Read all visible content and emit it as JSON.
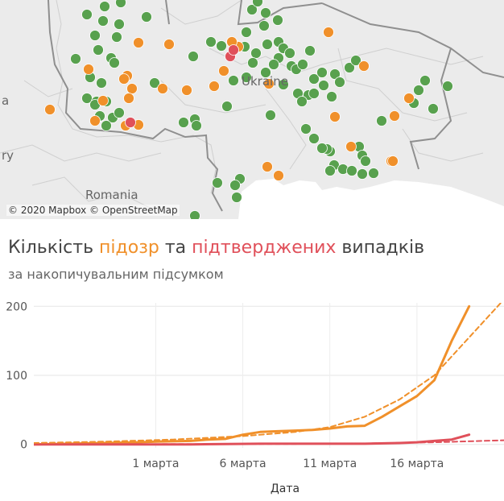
{
  "map": {
    "attribution": "© 2020 Mapbox © OpenStreetMap",
    "labels": {
      "ukraine": "Ukraine",
      "romania": "Romania",
      "left_a": "a",
      "left_y": "ry"
    },
    "colors": {
      "suspected": "#f0902a",
      "confirmed": "#e0505a",
      "other": "#58a14e"
    },
    "markers_green": [
      [
        108,
        18
      ],
      [
        128,
        26
      ],
      [
        150,
        3
      ],
      [
        182,
        21
      ],
      [
        118,
        44
      ],
      [
        145,
        46
      ],
      [
        130,
        8
      ],
      [
        148,
        30
      ],
      [
        94,
        73
      ],
      [
        122,
        62
      ],
      [
        138,
        72
      ],
      [
        142,
        78
      ],
      [
        112,
        96
      ],
      [
        126,
        103
      ],
      [
        108,
        122
      ],
      [
        120,
        126
      ],
      [
        132,
        126
      ],
      [
        118,
        130
      ],
      [
        124,
        144
      ],
      [
        140,
        146
      ],
      [
        148,
        140
      ],
      [
        132,
        156
      ],
      [
        192,
        103
      ],
      [
        228,
        152
      ],
      [
        242,
        148
      ],
      [
        244,
        156
      ],
      [
        240,
        70
      ],
      [
        262,
        52
      ],
      [
        275,
        57
      ],
      [
        304,
        58
      ],
      [
        306,
        40
      ],
      [
        313,
        12
      ],
      [
        320,
        2
      ],
      [
        330,
        16
      ],
      [
        345,
        25
      ],
      [
        318,
        66
      ],
      [
        314,
        78
      ],
      [
        306,
        96
      ],
      [
        290,
        100
      ],
      [
        328,
        32
      ],
      [
        332,
        55
      ],
      [
        346,
        52
      ],
      [
        352,
        60
      ],
      [
        360,
        66
      ],
      [
        362,
        82
      ],
      [
        368,
        86
      ],
      [
        376,
        80
      ],
      [
        385,
        63
      ],
      [
        346,
        72
      ],
      [
        340,
        80
      ],
      [
        330,
        90
      ],
      [
        352,
        105
      ],
      [
        383,
        118
      ],
      [
        370,
        116
      ],
      [
        375,
        126
      ],
      [
        390,
        98
      ],
      [
        400,
        90
      ],
      [
        402,
        106
      ],
      [
        416,
        92
      ],
      [
        422,
        102
      ],
      [
        434,
        84
      ],
      [
        412,
        120
      ],
      [
        336,
        143
      ],
      [
        390,
        116
      ],
      [
        474,
        150
      ],
      [
        520,
        112
      ],
      [
        528,
        100
      ],
      [
        514,
        128
      ],
      [
        538,
        135
      ],
      [
        556,
        107
      ],
      [
        410,
        188
      ],
      [
        406,
        185
      ],
      [
        415,
        205
      ],
      [
        426,
        210
      ],
      [
        437,
        212
      ],
      [
        446,
        182
      ],
      [
        450,
        193
      ],
      [
        454,
        200
      ],
      [
        464,
        215
      ],
      [
        450,
        216
      ],
      [
        410,
        212
      ],
      [
        298,
        222
      ],
      [
        292,
        230
      ],
      [
        270,
        227
      ],
      [
        294,
        245
      ],
      [
        242,
        268
      ],
      [
        282,
        132
      ],
      [
        390,
        172
      ],
      [
        400,
        184
      ],
      [
        380,
        160
      ],
      [
        442,
        75
      ]
    ],
    "markers_orange": [
      [
        408,
        40
      ],
      [
        452,
        82
      ],
      [
        508,
        122
      ],
      [
        490,
        144
      ],
      [
        416,
        145
      ],
      [
        436,
        182
      ],
      [
        486,
        200
      ],
      [
        488,
        200
      ],
      [
        332,
        207
      ],
      [
        346,
        218
      ],
      [
        334,
        104
      ],
      [
        232,
        112
      ],
      [
        266,
        107
      ],
      [
        278,
        88
      ],
      [
        292,
        56
      ],
      [
        296,
        58
      ],
      [
        288,
        52
      ],
      [
        210,
        55
      ],
      [
        172,
        53
      ],
      [
        158,
        94
      ],
      [
        154,
        98
      ],
      [
        164,
        110
      ],
      [
        160,
        122
      ],
      [
        110,
        86
      ],
      [
        128,
        125
      ],
      [
        62,
        136
      ],
      [
        156,
        156
      ],
      [
        172,
        155
      ],
      [
        118,
        150
      ],
      [
        202,
        110
      ]
    ],
    "markers_red": [
      [
        286,
        70
      ],
      [
        290,
        62
      ],
      [
        162,
        152
      ]
    ]
  },
  "title": {
    "part1": "Кількість ",
    "suspected": "підозр",
    "part2": " та ",
    "confirmed": "підтверджених",
    "part3": " випадків"
  },
  "subtitle": "за накопичувальним підсумком",
  "chart_data": {
    "type": "line",
    "xlabel": "Дата",
    "ylabel": "",
    "xlim": [
      "2020-02-23",
      "2020-03-21"
    ],
    "ylim": [
      -5,
      205
    ],
    "x_ticks": [
      {
        "date": "2020-03-01",
        "label": "1 марта"
      },
      {
        "date": "2020-03-06",
        "label": "6 марта"
      },
      {
        "date": "2020-03-11",
        "label": "11 марта"
      },
      {
        "date": "2020-03-16",
        "label": "16 марта"
      }
    ],
    "y_ticks": [
      0,
      100,
      200
    ],
    "grid": true,
    "series": [
      {
        "color": "#f0902a",
        "style": "solid",
        "x": [
          "2020-02-23",
          "2020-02-25",
          "2020-02-27",
          "2020-02-29",
          "2020-03-01",
          "2020-03-03",
          "2020-03-04",
          "2020-03-05",
          "2020-03-06",
          "2020-03-07",
          "2020-03-08",
          "2020-03-09",
          "2020-03-10",
          "2020-03-11",
          "2020-03-12",
          "2020-03-13",
          "2020-03-14",
          "2020-03-15",
          "2020-03-16",
          "2020-03-17",
          "2020-03-18",
          "2020-03-19"
        ],
        "y": [
          0,
          1,
          2,
          3,
          4,
          5,
          7,
          8,
          14,
          18,
          19,
          20,
          21,
          23,
          26,
          27,
          40,
          55,
          70,
          93,
          150,
          200
        ]
      },
      {
        "color": "#e0505a",
        "style": "solid",
        "x": [
          "2020-02-23",
          "2020-02-27",
          "2020-03-03",
          "2020-03-07",
          "2020-03-10",
          "2020-03-13",
          "2020-03-15",
          "2020-03-16",
          "2020-03-17",
          "2020-03-18",
          "2020-03-19"
        ],
        "y": [
          0,
          0,
          0,
          1,
          1,
          1,
          2,
          3,
          5,
          7,
          14
        ]
      },
      {
        "color": "#f0902a",
        "style": "dashed",
        "x": [
          "2020-02-23",
          "2020-02-27",
          "2020-03-02",
          "2020-03-06",
          "2020-03-09",
          "2020-03-11",
          "2020-03-13",
          "2020-03-15",
          "2020-03-17",
          "2020-03-19",
          "2020-03-21"
        ],
        "y": [
          2,
          4,
          7,
          12,
          18,
          25,
          40,
          65,
          100,
          155,
          210
        ]
      },
      {
        "color": "#e0505a",
        "style": "dashed",
        "x": [
          "2020-02-23",
          "2020-03-05",
          "2020-03-12",
          "2020-03-17",
          "2020-03-21"
        ],
        "y": [
          0,
          0.5,
          1,
          3,
          6
        ]
      }
    ]
  }
}
